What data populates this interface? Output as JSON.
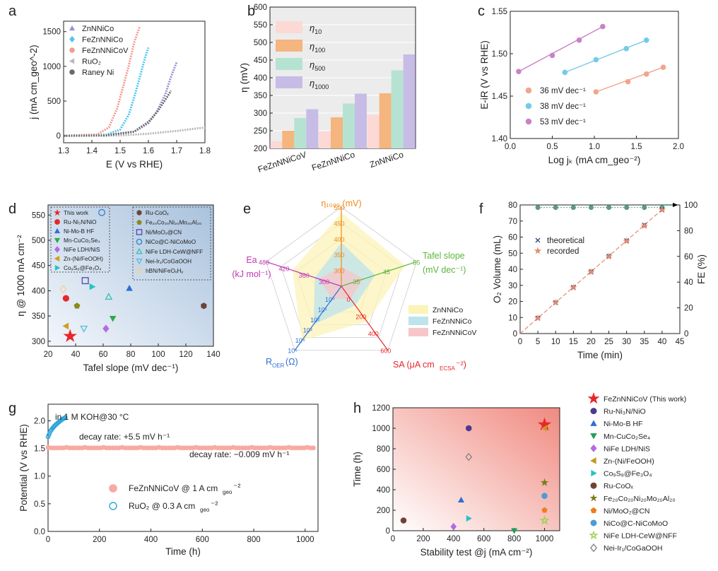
{
  "chart_data": [
    {
      "panel": "a",
      "type": "line",
      "xlabel": "E (V vs RHE)",
      "ylabel": "j (mA cm_geo^-2)",
      "xlim": [
        1.3,
        1.8
      ],
      "ylim": [
        -100,
        1650
      ],
      "xticks": [
        "1.3",
        "1.4",
        "1.5",
        "1.6",
        "1.7",
        "1.8"
      ],
      "yticks": [
        "0",
        "500",
        "1000",
        "1500"
      ],
      "series": [
        {
          "name": "ZnNNiCo",
          "color": "#9b8fd8",
          "x": [
            1.3,
            1.45,
            1.55,
            1.6,
            1.63,
            1.66,
            1.68,
            1.7
          ],
          "y": [
            0,
            10,
            60,
            180,
            350,
            600,
            850,
            1060
          ]
        },
        {
          "name": "FeZnNNiCo",
          "color": "#52c7ef",
          "x": [
            1.3,
            1.45,
            1.5,
            1.53,
            1.55,
            1.57,
            1.59,
            1.6
          ],
          "y": [
            0,
            15,
            90,
            300,
            560,
            850,
            1150,
            1270
          ]
        },
        {
          "name": "FeZnNNiCoV",
          "color": "#f59a94",
          "x": [
            1.3,
            1.42,
            1.46,
            1.49,
            1.51,
            1.53,
            1.55,
            1.57
          ],
          "y": [
            0,
            20,
            120,
            400,
            700,
            1000,
            1350,
            1580
          ]
        },
        {
          "name": "RuO2",
          "color": "#b8b8b8",
          "x": [
            1.3,
            1.5,
            1.6,
            1.7,
            1.8
          ],
          "y": [
            0,
            5,
            30,
            70,
            120
          ]
        },
        {
          "name": "Raney Ni",
          "color": "#6a6a6a",
          "x": [
            1.3,
            1.45,
            1.55,
            1.6,
            1.63,
            1.66,
            1.68
          ],
          "y": [
            0,
            5,
            60,
            200,
            340,
            520,
            650
          ]
        }
      ]
    },
    {
      "panel": "b",
      "type": "bar",
      "ylabel": "η (mV)",
      "ylim": [
        200,
        600
      ],
      "yticks": [
        "200",
        "250",
        "300",
        "350",
        "400",
        "450",
        "500",
        "550",
        "600"
      ],
      "categories": [
        "FeZnNNiCoV",
        "FeZnNNiCo",
        "ZnNNiCo"
      ],
      "series": [
        {
          "name": "η10",
          "label_main": "η",
          "label_sub": "10",
          "color": "#fcd9d4",
          "values": [
            220,
            249,
            295
          ]
        },
        {
          "name": "η100",
          "label_main": "η",
          "label_sub": "100",
          "color": "#f5b57e",
          "values": [
            250,
            288,
            356
          ]
        },
        {
          "name": "η500",
          "label_main": "η",
          "label_sub": "500",
          "color": "#b6e3d1",
          "values": [
            286,
            327,
            421
          ]
        },
        {
          "name": "η1000",
          "label_main": "η",
          "label_sub": "1000",
          "color": "#c7bce6",
          "values": [
            311,
            355,
            466
          ]
        }
      ]
    },
    {
      "panel": "c",
      "type": "scatter",
      "xlabel": "Log jk (mA cm_geo^-2)",
      "ylabel": "E-iR (V vs RHE)",
      "xlim": [
        0.0,
        2.0
      ],
      "ylim": [
        1.4,
        1.55
      ],
      "xticks": [
        "0.0",
        "0.5",
        "1.0",
        "1.5",
        "2.0"
      ],
      "yticks": [
        "1.40",
        "1.45",
        "1.50",
        "1.55"
      ],
      "series": [
        {
          "name": "36 mV dec-1",
          "color": "#f2a48d",
          "x": [
            1.02,
            1.4,
            1.62,
            1.82
          ],
          "y": [
            1.455,
            1.467,
            1.476,
            1.484
          ]
        },
        {
          "name": "38 mV dec-1",
          "color": "#74cbe8",
          "x": [
            0.65,
            1.02,
            1.38,
            1.62
          ],
          "y": [
            1.478,
            1.493,
            1.506,
            1.516
          ]
        },
        {
          "name": "53 mV dec-1",
          "color": "#c982c6",
          "x": [
            0.1,
            0.5,
            0.82,
            1.1
          ],
          "y": [
            1.479,
            1.498,
            1.516,
            1.532
          ]
        }
      ]
    },
    {
      "panel": "d",
      "type": "scatter",
      "xlabel": "Tafel slope (mV dec-1)",
      "ylabel": "η @ 1000 mA cm-2",
      "xlim": [
        20,
        140
      ],
      "ylim": [
        290,
        570
      ],
      "xticks": [
        "20",
        "40",
        "60",
        "80",
        "100",
        "120",
        "140"
      ],
      "yticks": [
        "300",
        "350",
        "400",
        "450",
        "500",
        "550"
      ],
      "points": [
        {
          "name": "This work",
          "shape": "star",
          "color": "#e8262a",
          "x": 36,
          "y": 310
        },
        {
          "name": "Ru-Ni3N/NiO",
          "shape": "circle",
          "color": "#e8262a",
          "x": 33,
          "y": 385
        },
        {
          "name": "Ni-Mo-B HF",
          "shape": "triangle",
          "color": "#2e6fd6",
          "x": 79,
          "y": 405
        },
        {
          "name": "Mn-CuCo2Se4",
          "shape": "tri-down",
          "color": "#2ea84d",
          "x": 67,
          "y": 345
        },
        {
          "name": "NiFe LDH/NiS",
          "shape": "diamond",
          "color": "#b26ce0",
          "x": 62,
          "y": 325
        },
        {
          "name": "Zn-(Ni/FeOOH)",
          "shape": "tri-left",
          "color": "#d39c1b",
          "x": 33,
          "y": 330
        },
        {
          "name": "Co9S8@Fe3O4",
          "shape": "tri-right",
          "color": "#27c2c7",
          "x": 52,
          "y": 408
        },
        {
          "name": "Ru-CoOx",
          "shape": "hexagon",
          "color": "#6e4336",
          "x": 133,
          "y": 370
        },
        {
          "name": "Fe20Co20Ni20Mo20Al20",
          "shape": "pentagon",
          "color": "#8a8a1f",
          "x": 41,
          "y": 370
        },
        {
          "name": "Ni/MoO2@CN",
          "shape": "square-open",
          "color": "#5a4fb3",
          "x": 47,
          "y": 420
        },
        {
          "name": "NiCo@C-NiCoMoO",
          "shape": "circle-open",
          "color": "#3a86c9",
          "x": 59,
          "y": 555
        },
        {
          "name": "NiFe LDH-CeW@NFF",
          "shape": "triangle-open",
          "color": "#3fbfb6",
          "x": 64,
          "y": 388
        },
        {
          "name": "Nei-Ir1/CoGaOOH",
          "shape": "tri-down-open",
          "color": "#5fbfd9",
          "x": 46,
          "y": 325
        },
        {
          "name": "hBN/NiFeOxHy",
          "shape": "diamond-open",
          "color": "#f1d29a",
          "x": 31,
          "y": 403
        }
      ],
      "legend_left": [
        {
          "label": "This work"
        },
        {
          "label": "Ru-Ni₃N/NiO"
        },
        {
          "label": "Ni-Mo-B HF"
        },
        {
          "label": "Mn-CuCo₂Se₄"
        },
        {
          "label": "NiFe LDH/NiS"
        },
        {
          "label": "Zn-(Ni/FeOOH)"
        },
        {
          "label": "Co₉S₈@Fe₃O₄"
        }
      ],
      "legend_right": [
        {
          "label": "Ru-CoOₓ"
        },
        {
          "label": "Fe₂₀Co₂₀Ni₂₀Mo₂₀Al₂₀"
        },
        {
          "label": "Ni/MoO₂@CN"
        },
        {
          "label": "NiCo@C-NiCoMoO"
        },
        {
          "label": "NiFe LDH-CeW@NFF"
        },
        {
          "label": "Nei-Ir₁/CoGaOOH"
        },
        {
          "label": "hBN/NiFeOₓHᵧ"
        }
      ]
    },
    {
      "panel": "e",
      "type": "radar",
      "axes": [
        {
          "label": "η1000 (mV)",
          "color": "#f08a1c",
          "ticks": [
            "300",
            "350",
            "400",
            "450",
            "500"
          ]
        },
        {
          "label": "Tafel slope (mV dec-1)",
          "color": "#5cb63c",
          "ticks": [
            "35",
            "45",
            "55"
          ]
        },
        {
          "label": "SA (μA cm_ECSA^-2)",
          "color": "#e8262a",
          "ticks": [
            "0",
            "200",
            "400",
            "600"
          ]
        },
        {
          "label": "R_OER (Ω)",
          "color": "#2e6fd6",
          "ticks": [
            "10⁰",
            "10¹",
            "10²",
            "10³",
            "10⁴",
            "10⁵"
          ]
        },
        {
          "label": "Ea (kJ mol-1)",
          "color": "#c239b3",
          "ticks": [
            "300",
            "360",
            "420",
            "480"
          ]
        }
      ],
      "series": [
        {
          "name": "ZnNNiCo",
          "color": "#fbf3b8",
          "values": [
            0.93,
            0.85,
            0.55,
            0.85,
            0.65
          ]
        },
        {
          "name": "FeZnNNiCo",
          "color": "#bde3ec",
          "values": [
            0.55,
            0.45,
            0.3,
            0.6,
            0.35
          ]
        },
        {
          "name": "FeZnNNiCoV",
          "color": "#f6c6cb",
          "values": [
            0.25,
            0.3,
            0.2,
            0.2,
            0.3
          ]
        }
      ]
    },
    {
      "panel": "f",
      "type": "scatter",
      "xlabel": "Time (min)",
      "ylabel": "O2 Volume (mL)",
      "y2label": "FE (%)",
      "xlim": [
        0,
        45
      ],
      "ylim": [
        0,
        80
      ],
      "y2lim": [
        0,
        100
      ],
      "xticks": [
        "0",
        "5",
        "10",
        "15",
        "20",
        "25",
        "30",
        "35",
        "40",
        "45"
      ],
      "yticks": [
        "0",
        "10",
        "20",
        "30",
        "40",
        "50",
        "60",
        "70",
        "80"
      ],
      "y2ticks": [
        "0",
        "20",
        "40",
        "60",
        "80",
        "100"
      ],
      "series": [
        {
          "name": "theoretical",
          "color": "#2f3f6e",
          "x": [
            5,
            10,
            15,
            20,
            25,
            30,
            35,
            40
          ],
          "y": [
            9.7,
            19.3,
            28.8,
            38.6,
            48.2,
            57.8,
            67.5,
            77.1
          ]
        },
        {
          "name": "recorded",
          "color": "#e38a6f",
          "x": [
            5,
            10,
            15,
            20,
            25,
            30,
            35,
            40
          ],
          "y": [
            9.6,
            19.2,
            28.6,
            38.3,
            47.9,
            57.5,
            67.0,
            76.9
          ]
        },
        {
          "name": "FE",
          "color": "#5c9b7c",
          "x": [
            5,
            10,
            15,
            20,
            25,
            30,
            35,
            40
          ],
          "y": [
            98,
            98,
            98,
            98,
            98,
            98,
            98,
            98
          ]
        }
      ]
    },
    {
      "panel": "g",
      "type": "scatter",
      "xlabel": "Time (h)",
      "ylabel": "Potential (V vs RHE)",
      "xlim": [
        0,
        1050
      ],
      "ylim": [
        0,
        2.3
      ],
      "xticks": [
        "0",
        "200",
        "400",
        "600",
        "800",
        "1000"
      ],
      "yticks": [
        "0.0",
        "0.5",
        "1.0",
        "1.5",
        "2.0"
      ],
      "annotations": [
        "in 1 M KOH@30 °C",
        "decay rate: +5.5 mV h⁻¹",
        "decay rate: −0.009 mV h⁻¹"
      ],
      "series": [
        {
          "name": "FeZnNNiCoV @ 1 A cm_geo^-2",
          "color": "#f7aaa1",
          "y_const": 1.51,
          "x_range": [
            0,
            1035
          ]
        },
        {
          "name": "RuO2 @ 0.3 A cm_geo^-2",
          "color": "#2fa6d9",
          "x": [
            0,
            10,
            20,
            30,
            40,
            50,
            60,
            70
          ],
          "y": [
            1.71,
            1.82,
            1.88,
            1.93,
            1.97,
            2.01,
            2.04,
            2.07
          ]
        }
      ]
    },
    {
      "panel": "h",
      "type": "scatter",
      "xlabel": "Stability test @j (mA cm-2)",
      "ylabel": "Time (h)",
      "xlim": [
        0,
        1100
      ],
      "ylim": [
        0,
        1200
      ],
      "xticks": [
        "0",
        "200",
        "400",
        "600",
        "800",
        "1000"
      ],
      "yticks": [
        "0",
        "200",
        "400",
        "600",
        "800",
        "1000",
        "1200"
      ],
      "points": [
        {
          "name": "FeZnNNiCoV (This work)",
          "shape": "star",
          "color": "#e8262a",
          "x": 1000,
          "y": 1035
        },
        {
          "name": "Ru-Ni3N/NiO",
          "shape": "circle",
          "color": "#4a3b8f",
          "x": 500,
          "y": 1000
        },
        {
          "name": "Ni-Mo-B HF",
          "shape": "triangle",
          "color": "#2e6fd6",
          "x": 450,
          "y": 300
        },
        {
          "name": "Mn-CuCo2Se4",
          "shape": "tri-down",
          "color": "#1f9e5a",
          "x": 800,
          "y": 0
        },
        {
          "name": "NiFe LDH/NiS",
          "shape": "diamond",
          "color": "#b26ce0",
          "x": 400,
          "y": 40
        },
        {
          "name": "Zn-(Ni/FeOOH)",
          "shape": "tri-left",
          "color": "#c9971e",
          "x": 1000,
          "y": 1000
        },
        {
          "name": "Co9S8@Fe3O4",
          "shape": "tri-right",
          "color": "#27c2c7",
          "x": 500,
          "y": 120
        },
        {
          "name": "Ru-CoOx",
          "shape": "circle",
          "color": "#6e4336",
          "x": 70,
          "y": 100
        },
        {
          "name": "Fe20Co20Ni20Mo20Al20",
          "shape": "star",
          "color": "#7b7b1c",
          "x": 1000,
          "y": 470
        },
        {
          "name": "Ni/MoO2@CN",
          "shape": "pentagon",
          "color": "#f07c1c",
          "x": 1000,
          "y": 200
        },
        {
          "name": "NiCo@C-NiCoMoO",
          "shape": "circle",
          "color": "#4d9bd6",
          "x": 1000,
          "y": 340
        },
        {
          "name": "NiFe LDH-CeW@NFF",
          "shape": "star-open",
          "color": "#9bd14f",
          "x": 1000,
          "y": 100
        },
        {
          "name": "Nei-Ir1/CoGaOOH",
          "shape": "diamond-open",
          "color": "#888888",
          "x": 500,
          "y": 720
        }
      ],
      "legend": [
        "FeZnNNiCoV (This work)",
        "Ru-Ni₃N/NiO",
        "Ni-Mo-B HF",
        "Mn-CuCo₂Se₄",
        "NiFe LDH/NiS",
        "Zn-(Ni/FeOOH)",
        "Co₉S₈@Fe₃O₄",
        "Ru-CoOₓ",
        "Fe₂₀Co₂₀Ni₂₀Mo₂₀Al₂₀",
        "Ni/MoO₂@CN",
        "NiCo@C-NiCoMoO",
        "NiFe LDH-CeW@NFF",
        "Nei-Ir₁/CoGaOOH"
      ]
    }
  ]
}
